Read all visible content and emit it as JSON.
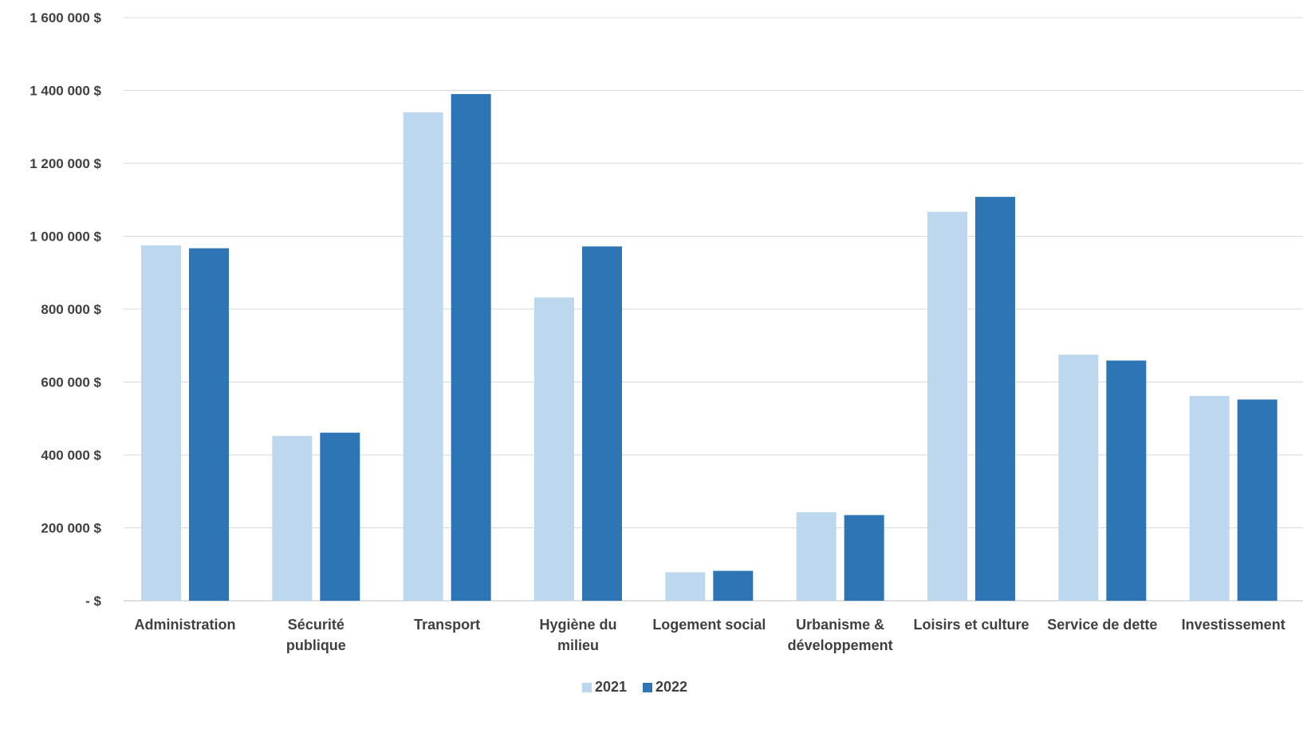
{
  "chart_data": {
    "type": "bar",
    "title": "",
    "xlabel": "",
    "ylabel": "",
    "ylim": [
      0,
      1600000
    ],
    "y_ticks": [
      0,
      200000,
      400000,
      600000,
      800000,
      1000000,
      1200000,
      1400000,
      1600000
    ],
    "y_tick_labels": [
      "-  $",
      "200 000 $",
      "400 000 $",
      "600 000 $",
      "800 000 $",
      "1 000 000 $",
      "1 200 000 $",
      "1 400 000 $",
      "1 600 000 $"
    ],
    "grid": true,
    "legend_position": "bottom",
    "categories": [
      [
        "Administration"
      ],
      [
        "Sécurité",
        "publique"
      ],
      [
        "Transport"
      ],
      [
        "Hygiène du",
        "milieu"
      ],
      [
        "Logement social"
      ],
      [
        "Urbanisme &",
        "développement"
      ],
      [
        "Loisirs et culture"
      ],
      [
        "Service de dette"
      ],
      [
        "Investissement"
      ]
    ],
    "series": [
      {
        "name": "2021",
        "color": "#bdd7ee",
        "values": [
          975000,
          452000,
          1340000,
          832000,
          78000,
          243000,
          1067000,
          675000,
          562000
        ]
      },
      {
        "name": "2022",
        "color": "#2e75b6",
        "values": [
          967000,
          461000,
          1390000,
          972000,
          82000,
          235000,
          1108000,
          659000,
          552000
        ]
      }
    ]
  }
}
